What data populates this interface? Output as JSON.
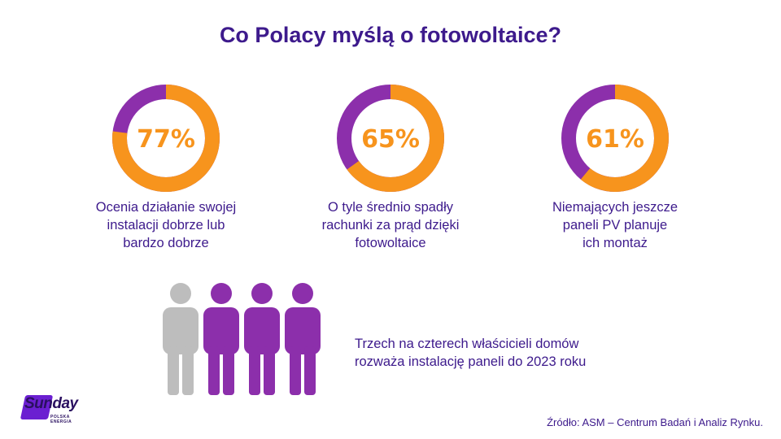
{
  "title": "Co Polacy myślą o fotowoltaice?",
  "colors": {
    "accent": "#f7941d",
    "secondary": "#8c2fab",
    "text": "#3d1a8c",
    "person_gray": "#bdbdbd"
  },
  "chart_data": [
    {
      "type": "pie",
      "variant": "donut",
      "value": 77,
      "label": "77%",
      "unit": "%",
      "description_lines": [
        "Ocenia działanie swojej",
        "instalacji dobrze lub",
        "bardzo dobrze"
      ]
    },
    {
      "type": "pie",
      "variant": "donut",
      "value": 65,
      "label": "65%",
      "unit": "%",
      "description_lines": [
        "O tyle średnio spadły",
        "rachunki za prąd dzięki",
        "fotowoltaice"
      ]
    },
    {
      "type": "pie",
      "variant": "donut",
      "value": 61,
      "label": "61%",
      "unit": "%",
      "description_lines": [
        "Niemających jeszcze",
        "paneli PV planuje",
        "ich montaż"
      ]
    },
    {
      "type": "pictogram",
      "total": 4,
      "highlighted": 3,
      "description_lines": [
        "Trzech na czterech właścicieli domów",
        "rozważa instalację paneli do 2023 roku"
      ]
    }
  ],
  "logo": {
    "name": "Sunday",
    "tagline": "POLSKA ENERGIA"
  },
  "source": "Źródło: ASM – Centrum Badań i Analiz Rynku."
}
